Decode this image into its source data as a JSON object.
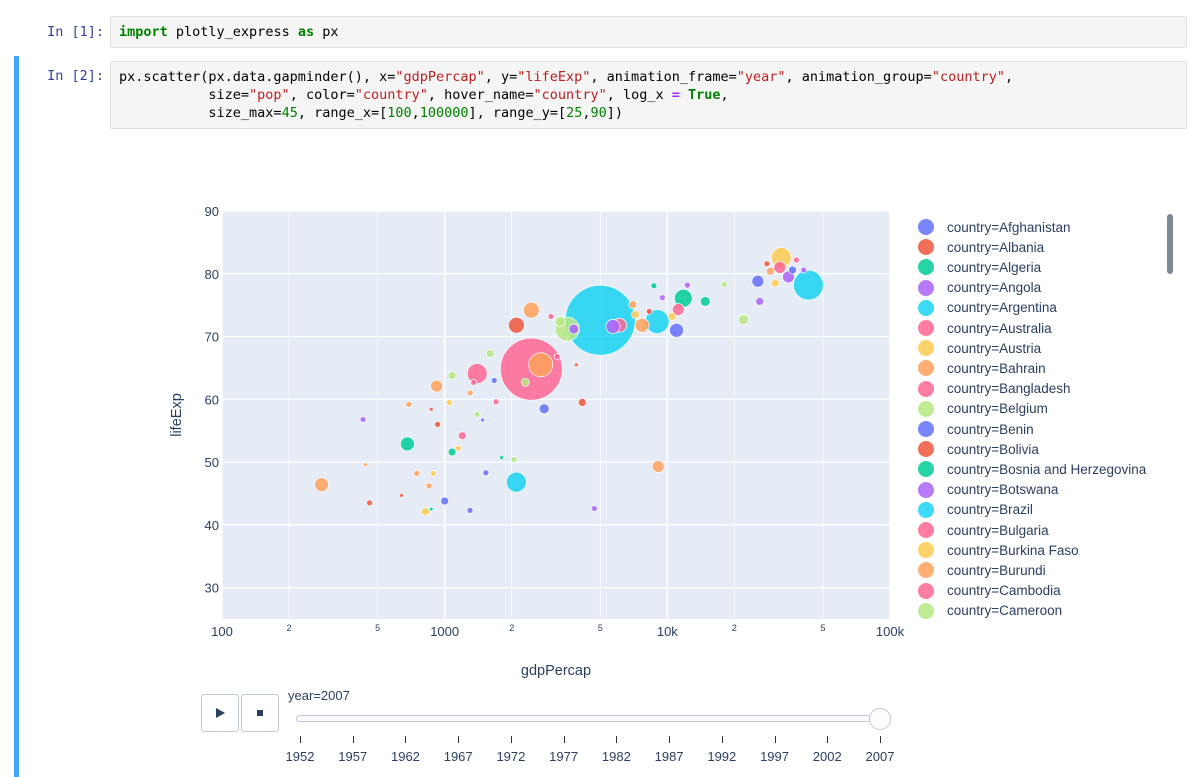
{
  "cells": [
    {
      "prompt": "In [1]:"
    },
    {
      "prompt": "In [2]:"
    }
  ],
  "cell1_code": {
    "kw_import": "import",
    "mod": " plotly_express ",
    "kw_as": "as",
    "alias": " px"
  },
  "cell2_code": {
    "l1_a": "px.scatter(px.data.gapminder(), x=",
    "s_gdp": "\"gdpPercap\"",
    "l1_b": ", y=",
    "s_life": "\"lifeExp\"",
    "l1_c": ", animation_frame=",
    "s_year": "\"year\"",
    "l1_d": ", animation_group=",
    "s_country1": "\"country\"",
    "l1_e": ",",
    "l2_a": "           size=",
    "s_pop": "\"pop\"",
    "l2_b": ", color=",
    "s_country2": "\"country\"",
    "l2_c": ", hover_name=",
    "s_country3": "\"country\"",
    "l2_d": ", log_x ",
    "eq": "=",
    "kw_true": "True",
    "l2_e": ",",
    "l3_a": "           size_max=",
    "n_45": "45",
    "l3_b": ", range_x=[",
    "n_100": "100",
    "l3_c": ",",
    "n_100000": "100000",
    "l3_d": "], range_y=[",
    "n_25": "25",
    "l3_e": ",",
    "n_90": "90",
    "l3_f": "])"
  },
  "legend": {
    "items": [
      {
        "label": "country=Afghanistan",
        "color": "#636efa"
      },
      {
        "label": "country=Albania",
        "color": "#EF553B"
      },
      {
        "label": "country=Algeria",
        "color": "#00cc96"
      },
      {
        "label": "country=Angola",
        "color": "#ab63fa"
      },
      {
        "label": "country=Argentina",
        "color": "#19d3f3"
      },
      {
        "label": "country=Australia",
        "color": "#FF6692"
      },
      {
        "label": "country=Austria",
        "color": "#FECB52"
      },
      {
        "label": "country=Bahrain",
        "color": "#FFA15A"
      },
      {
        "label": "country=Bangladesh",
        "color": "#FF6692"
      },
      {
        "label": "country=Belgium",
        "color": "#B6E880"
      },
      {
        "label": "country=Benin",
        "color": "#636efa"
      },
      {
        "label": "country=Bolivia",
        "color": "#EF553B"
      },
      {
        "label": "country=Bosnia and Herzegovina",
        "color": "#00cc96"
      },
      {
        "label": "country=Botswana",
        "color": "#ab63fa"
      },
      {
        "label": "country=Brazil",
        "color": "#19d3f3"
      },
      {
        "label": "country=Bulgaria",
        "color": "#FF6692"
      },
      {
        "label": "country=Burkina Faso",
        "color": "#FECB52"
      },
      {
        "label": "country=Burundi",
        "color": "#FFA15A"
      },
      {
        "label": "country=Cambodia",
        "color": "#FF6692"
      },
      {
        "label": "country=Cameroon",
        "color": "#B6E880"
      }
    ]
  },
  "animation": {
    "current_label": "year=2007",
    "play_icon": "play-icon",
    "stop_icon": "stop-icon",
    "years": [
      "1952",
      "1957",
      "1962",
      "1967",
      "1972",
      "1977",
      "1982",
      "1987",
      "1992",
      "1997",
      "2002",
      "2007"
    ],
    "current_year": "2007"
  },
  "chart_data": {
    "type": "scatter",
    "xlabel": "gdpPercap",
    "ylabel": "lifeExp",
    "x_scale": "log",
    "xlim": [
      100,
      100000
    ],
    "ylim": [
      25,
      90
    ],
    "x_tick_labels": [
      "100",
      "1000",
      "10k",
      "100k"
    ],
    "x_minor_tick_labels": [
      "2",
      "5",
      "2",
      "5",
      "2",
      "5"
    ],
    "y_tick_labels": [
      "30",
      "40",
      "50",
      "60",
      "70",
      "80",
      "90"
    ],
    "y_ticks": [
      30,
      40,
      50,
      60,
      70,
      80,
      90
    ],
    "points": [
      {
        "x": 5000,
        "y": 72.6,
        "r": 35,
        "c": "#19d3f3"
      },
      {
        "x": 2450,
        "y": 64.8,
        "r": 31,
        "c": "#FF6692"
      },
      {
        "x": 3550,
        "y": 71.2,
        "r": 12,
        "c": "#B6E880"
      },
      {
        "x": 43000,
        "y": 78.2,
        "r": 15,
        "c": "#19d3f3"
      },
      {
        "x": 9000,
        "y": 72.4,
        "r": 12,
        "c": "#19d3f3"
      },
      {
        "x": 2700,
        "y": 65.5,
        "r": 12,
        "c": "#FFA15A"
      },
      {
        "x": 1400,
        "y": 64.1,
        "r": 10,
        "c": "#FF6692"
      },
      {
        "x": 2100,
        "y": 46.8,
        "r": 10,
        "c": "#19d3f3"
      },
      {
        "x": 11800,
        "y": 76.1,
        "r": 9,
        "c": "#00cc96"
      },
      {
        "x": 32500,
        "y": 82.6,
        "r": 10,
        "c": "#FECB52"
      },
      {
        "x": 2450,
        "y": 74.2,
        "r": 8,
        "c": "#FFA15A"
      },
      {
        "x": 2100,
        "y": 71.8,
        "r": 8,
        "c": "#EF553B"
      },
      {
        "x": 7700,
        "y": 71.8,
        "r": 7,
        "c": "#FFA15A"
      },
      {
        "x": 6100,
        "y": 71.8,
        "r": 7,
        "c": "#FF6692"
      },
      {
        "x": 11000,
        "y": 71.0,
        "r": 7,
        "c": "#636efa"
      },
      {
        "x": 280,
        "y": 46.4,
        "r": 7,
        "c": "#FFA15A"
      },
      {
        "x": 680,
        "y": 52.9,
        "r": 7,
        "c": "#00cc96"
      },
      {
        "x": 9100,
        "y": 49.3,
        "r": 6,
        "c": "#FFA15A"
      },
      {
        "x": 2800,
        "y": 58.5,
        "r": 5,
        "c": "#636efa"
      },
      {
        "x": 920,
        "y": 62.1,
        "r": 6,
        "c": "#FFA15A"
      },
      {
        "x": 1000,
        "y": 43.8,
        "r": 4,
        "c": "#636efa"
      },
      {
        "x": 4150,
        "y": 59.5,
        "r": 4,
        "c": "#EF553B"
      },
      {
        "x": 1600,
        "y": 67.3,
        "r": 4,
        "c": "#B6E880"
      },
      {
        "x": 1080,
        "y": 63.8,
        "r": 4,
        "c": "#B6E880"
      },
      {
        "x": 5700,
        "y": 71.6,
        "r": 7,
        "c": "#ab63fa"
      },
      {
        "x": 3800,
        "y": 71.2,
        "r": 5,
        "c": "#ab63fa"
      },
      {
        "x": 3300,
        "y": 72.4,
        "r": 5,
        "c": "#B6E880"
      },
      {
        "x": 3000,
        "y": 73.2,
        "r": 3,
        "c": "#FF6692"
      },
      {
        "x": 7200,
        "y": 73.5,
        "r": 4,
        "c": "#FECB52"
      },
      {
        "x": 10500,
        "y": 73.2,
        "r": 4,
        "c": "#FECB52"
      },
      {
        "x": 14800,
        "y": 75.6,
        "r": 5,
        "c": "#00cc96"
      },
      {
        "x": 26000,
        "y": 75.6,
        "r": 4,
        "c": "#ab63fa"
      },
      {
        "x": 22000,
        "y": 72.7,
        "r": 5,
        "c": "#B6E880"
      },
      {
        "x": 32000,
        "y": 81.0,
        "r": 6,
        "c": "#FF6692"
      },
      {
        "x": 35000,
        "y": 79.5,
        "r": 6,
        "c": "#ab63fa"
      },
      {
        "x": 29000,
        "y": 80.4,
        "r": 4,
        "c": "#FFA15A"
      },
      {
        "x": 30500,
        "y": 78.5,
        "r": 4,
        "c": "#FECB52"
      },
      {
        "x": 36500,
        "y": 80.6,
        "r": 4,
        "c": "#636efa"
      },
      {
        "x": 25500,
        "y": 78.8,
        "r": 6,
        "c": "#636efa"
      },
      {
        "x": 12300,
        "y": 78.2,
        "r": 3,
        "c": "#ab63fa"
      },
      {
        "x": 8700,
        "y": 78.1,
        "r": 3,
        "c": "#00cc96"
      },
      {
        "x": 9500,
        "y": 76.2,
        "r": 3,
        "c": "#ab63fa"
      },
      {
        "x": 1200,
        "y": 54.2,
        "r": 4,
        "c": "#FF6692"
      },
      {
        "x": 1150,
        "y": 52.2,
        "r": 3,
        "c": "#FECB52"
      },
      {
        "x": 1080,
        "y": 51.6,
        "r": 4,
        "c": "#00cc96"
      },
      {
        "x": 1350,
        "y": 62.7,
        "r": 3,
        "c": "#FF6692"
      },
      {
        "x": 1700,
        "y": 59.6,
        "r": 3,
        "c": "#FF6692"
      },
      {
        "x": 1400,
        "y": 57.6,
        "r": 3,
        "c": "#B6E880"
      },
      {
        "x": 1300,
        "y": 61.0,
        "r": 3,
        "c": "#FFA15A"
      },
      {
        "x": 1670,
        "y": 63.0,
        "r": 3,
        "c": "#636efa"
      },
      {
        "x": 850,
        "y": 46.2,
        "r": 3,
        "c": "#FFA15A"
      },
      {
        "x": 820,
        "y": 42.1,
        "r": 4,
        "c": "#FECB52"
      },
      {
        "x": 750,
        "y": 48.2,
        "r": 3,
        "c": "#FFA15A"
      },
      {
        "x": 890,
        "y": 48.2,
        "r": 3,
        "c": "#FECB52"
      },
      {
        "x": 460,
        "y": 43.5,
        "r": 3,
        "c": "#EF553B"
      },
      {
        "x": 440,
        "y": 49.6,
        "r": 2,
        "c": "#FFA15A"
      },
      {
        "x": 1300,
        "y": 42.3,
        "r": 3,
        "c": "#636efa"
      },
      {
        "x": 1530,
        "y": 48.3,
        "r": 3,
        "c": "#636efa"
      },
      {
        "x": 2050,
        "y": 50.4,
        "r": 3,
        "c": "#B6E880"
      },
      {
        "x": 1800,
        "y": 50.7,
        "r": 2,
        "c": "#00cc96"
      },
      {
        "x": 1050,
        "y": 59.5,
        "r": 3,
        "c": "#FECB52"
      },
      {
        "x": 1480,
        "y": 56.7,
        "r": 2,
        "c": "#636efa"
      },
      {
        "x": 930,
        "y": 56.0,
        "r": 3,
        "c": "#EF553B"
      },
      {
        "x": 870,
        "y": 58.4,
        "r": 2,
        "c": "#EF553B"
      },
      {
        "x": 690,
        "y": 59.2,
        "r": 3,
        "c": "#FFA15A"
      },
      {
        "x": 2300,
        "y": 62.7,
        "r": 4,
        "c": "#B6E880"
      },
      {
        "x": 3200,
        "y": 66.8,
        "r": 3,
        "c": "#FF6692"
      },
      {
        "x": 4700,
        "y": 42.6,
        "r": 3,
        "c": "#ab63fa"
      },
      {
        "x": 430,
        "y": 56.8,
        "r": 3,
        "c": "#ab63fa"
      },
      {
        "x": 640,
        "y": 44.7,
        "r": 2,
        "c": "#EF553B"
      },
      {
        "x": 870,
        "y": 42.5,
        "r": 2,
        "c": "#00cc96"
      },
      {
        "x": 18000,
        "y": 78.3,
        "r": 3,
        "c": "#B6E880"
      },
      {
        "x": 41000,
        "y": 80.6,
        "r": 3,
        "c": "#ab63fa"
      },
      {
        "x": 38000,
        "y": 82.2,
        "r": 3,
        "c": "#FF6692"
      },
      {
        "x": 28000,
        "y": 81.6,
        "r": 3,
        "c": "#EF553B"
      },
      {
        "x": 7000,
        "y": 75.1,
        "r": 4,
        "c": "#FFA15A"
      },
      {
        "x": 8300,
        "y": 74.0,
        "r": 3,
        "c": "#EF553B"
      },
      {
        "x": 3900,
        "y": 65.5,
        "r": 2,
        "c": "#EF553B"
      },
      {
        "x": 11200,
        "y": 74.3,
        "r": 6,
        "c": "#FF6692"
      }
    ]
  }
}
